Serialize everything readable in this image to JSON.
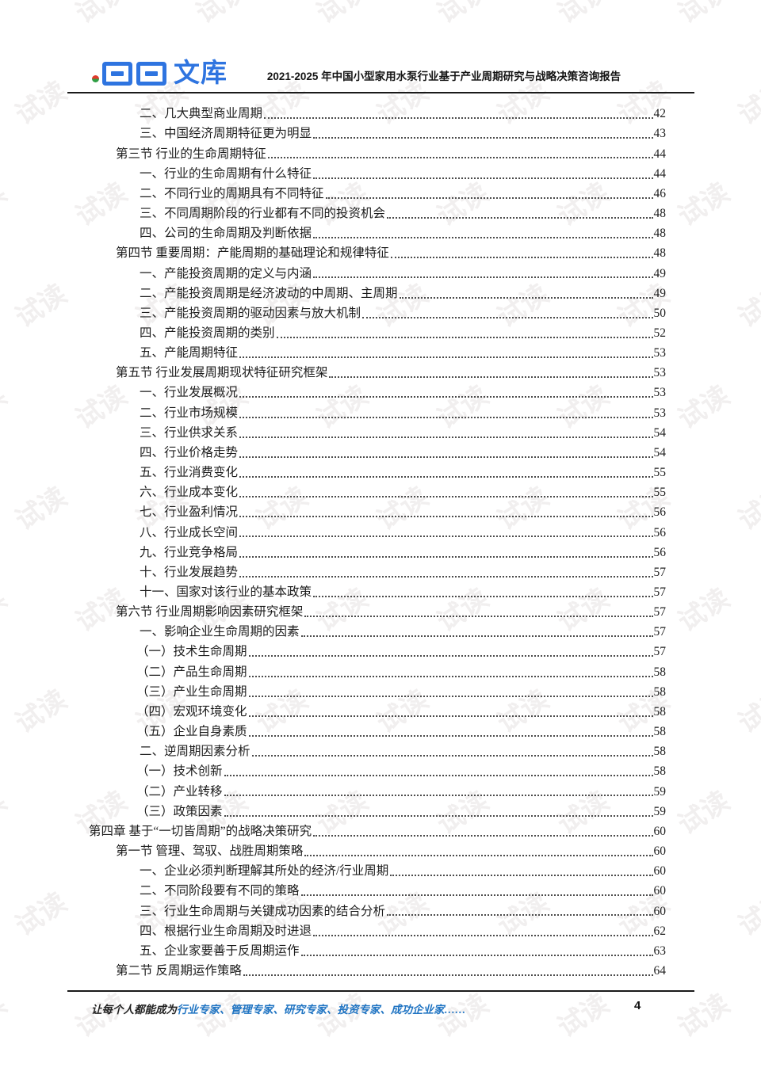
{
  "watermark": {
    "text": "试读"
  },
  "header": {
    "logo_text": "文库",
    "title": "2021-2025 年中国小型家用水泵行业基于产业周期研究与战略决策咨询报告"
  },
  "colors": {
    "logo_blue": "#2e74e0",
    "logo_dot_red": "#e03a2c",
    "logo_dot_green": "#2f9e44",
    "accent_blue": "#1e73c2",
    "watermark_gray": "#f1efef"
  },
  "toc": {
    "entries": [
      {
        "level": "item",
        "label": "二、几大典型商业周期",
        "page": "42"
      },
      {
        "level": "item",
        "label": "三、中国经济周期特征更为明显",
        "page": "43"
      },
      {
        "level": "section",
        "label": "第三节 行业的生命周期特征",
        "page": "44"
      },
      {
        "level": "item",
        "label": "一、行业的生命周期有什么特征",
        "page": "44"
      },
      {
        "level": "item",
        "label": "二、不同行业的周期具有不同特征",
        "page": "46"
      },
      {
        "level": "item",
        "label": "三、不同周期阶段的行业都有不同的投资机会",
        "page": "48"
      },
      {
        "level": "item",
        "label": "四、公司的生命周期及判断依据",
        "page": "48"
      },
      {
        "level": "section",
        "label": "第四节 重要周期：产能周期的基础理论和规律特征",
        "page": "48"
      },
      {
        "level": "item",
        "label": "一、产能投资周期的定义与内涵",
        "page": "49"
      },
      {
        "level": "item",
        "label": "二、产能投资周期是经济波动的中周期、主周期",
        "page": "49"
      },
      {
        "level": "item",
        "label": "三、产能投资周期的驱动因素与放大机制",
        "page": "50"
      },
      {
        "level": "item",
        "label": "四、产能投资周期的类别",
        "page": "52"
      },
      {
        "level": "item",
        "label": "五、产能周期特征",
        "page": "53"
      },
      {
        "level": "section",
        "label": "第五节 行业发展周期现状特征研究框架",
        "page": "53"
      },
      {
        "level": "item",
        "label": "一、行业发展概况",
        "page": "53"
      },
      {
        "level": "item",
        "label": "二、行业市场规模",
        "page": "53"
      },
      {
        "level": "item",
        "label": "三、行业供求关系",
        "page": "54"
      },
      {
        "level": "item",
        "label": "四、行业价格走势",
        "page": "54"
      },
      {
        "level": "item",
        "label": "五、行业消费变化",
        "page": "55"
      },
      {
        "level": "item",
        "label": "六、行业成本变化",
        "page": "55"
      },
      {
        "level": "item",
        "label": "七、行业盈利情况",
        "page": "56"
      },
      {
        "level": "item",
        "label": "八、行业成长空间",
        "page": "56"
      },
      {
        "level": "item",
        "label": "九、行业竞争格局",
        "page": "56"
      },
      {
        "level": "item",
        "label": "十、行业发展趋势",
        "page": "57"
      },
      {
        "level": "item",
        "label": "十一、国家对该行业的基本政策",
        "page": "57"
      },
      {
        "level": "section",
        "label": "第六节 行业周期影响因素研究框架",
        "page": "57"
      },
      {
        "level": "item",
        "label": "一、影响企业生命周期的因素",
        "page": "57"
      },
      {
        "level": "subitem",
        "label": "（一）技术生命周期",
        "page": "57"
      },
      {
        "level": "subitem",
        "label": "（二）产品生命周期",
        "page": "58"
      },
      {
        "level": "subitem",
        "label": "（三）产业生命周期",
        "page": "58"
      },
      {
        "level": "subitem",
        "label": "（四）宏观环境变化",
        "page": "58"
      },
      {
        "level": "subitem",
        "label": "（五）企业自身素质",
        "page": "58"
      },
      {
        "level": "item",
        "label": "二、逆周期因素分析",
        "page": "58"
      },
      {
        "level": "subitem",
        "label": "（一）技术创新",
        "page": "58"
      },
      {
        "level": "subitem",
        "label": "（二）产业转移",
        "page": "59"
      },
      {
        "level": "subitem",
        "label": "（三）政策因素",
        "page": "59"
      },
      {
        "level": "chapter",
        "label": "第四章 基于“一切皆周期”的战略决策研究",
        "page": "60"
      },
      {
        "level": "section",
        "label": "第一节 管理、驾驭、战胜周期策略",
        "page": "60"
      },
      {
        "level": "item",
        "label": "一、企业必须判断理解其所处的经济/行业周期",
        "page": "60"
      },
      {
        "level": "item",
        "label": "二、不同阶段要有不同的策略",
        "page": "60"
      },
      {
        "level": "item",
        "label": "三、行业生命周期与关键成功因素的结合分析",
        "page": "60"
      },
      {
        "level": "item",
        "label": "四、根据行业生命周期及时进退",
        "page": "62"
      },
      {
        "level": "item",
        "label": "五、企业家要善于反周期运作",
        "page": "63"
      },
      {
        "level": "section",
        "label": "第二节 反周期运作策略",
        "page": "64"
      }
    ]
  },
  "footer": {
    "prefix": "让每个人都能成为",
    "highlight": "行业专家、管理专家、研究专家、投资专家、成功企业家……",
    "page_number": "4"
  }
}
